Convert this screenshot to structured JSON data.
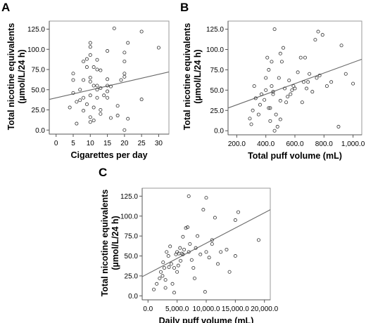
{
  "chart_data": [
    {
      "panel": "A",
      "type": "scatter",
      "title": "",
      "xlabel": "Cigarettes per day",
      "ylabel": "Total nicotine equivalents",
      "ylabel_units": "(µmol/L/24 h)",
      "xlim": [
        -2,
        33
      ],
      "ylim": [
        -5,
        135
      ],
      "xticks": [
        0,
        5,
        10,
        15,
        20,
        25,
        30
      ],
      "xtick_labels": [
        "0",
        "5",
        "10",
        "15",
        "20",
        "25",
        "30"
      ],
      "yticks": [
        0,
        25,
        50,
        75,
        100,
        125
      ],
      "ytick_labels": [
        "0.0",
        "25.0",
        "50.0",
        "75.0",
        "100.0",
        "125.0"
      ],
      "grid": false,
      "points": [
        [
          4,
          28
        ],
        [
          5,
          70
        ],
        [
          5,
          46
        ],
        [
          5,
          62
        ],
        [
          6,
          8
        ],
        [
          6,
          35
        ],
        [
          7,
          50
        ],
        [
          7,
          37
        ],
        [
          8,
          62
        ],
        [
          8,
          85
        ],
        [
          8,
          40
        ],
        [
          8,
          24
        ],
        [
          9,
          88
        ],
        [
          9,
          78
        ],
        [
          9,
          32
        ],
        [
          10,
          108
        ],
        [
          10,
          103
        ],
        [
          10,
          93
        ],
        [
          10,
          65
        ],
        [
          10,
          43
        ],
        [
          10,
          16
        ],
        [
          10,
          10
        ],
        [
          10,
          60
        ],
        [
          11,
          78
        ],
        [
          11,
          55
        ],
        [
          11,
          28
        ],
        [
          11,
          12
        ],
        [
          12,
          87
        ],
        [
          12,
          75
        ],
        [
          12,
          55
        ],
        [
          12,
          50
        ],
        [
          12,
          40
        ],
        [
          13,
          74
        ],
        [
          13,
          52
        ],
        [
          13,
          25
        ],
        [
          13,
          20
        ],
        [
          14,
          43
        ],
        [
          15,
          98
        ],
        [
          15,
          63
        ],
        [
          15,
          55
        ],
        [
          15,
          48
        ],
        [
          15,
          40
        ],
        [
          16,
          54
        ],
        [
          16,
          15
        ],
        [
          17,
          126
        ],
        [
          18,
          30
        ],
        [
          18,
          18
        ],
        [
          19,
          62
        ],
        [
          20,
          96
        ],
        [
          20,
          85
        ],
        [
          20,
          66
        ],
        [
          20,
          70
        ],
        [
          20,
          0
        ],
        [
          21,
          108
        ],
        [
          21,
          14
        ],
        [
          25,
          122
        ],
        [
          25,
          38
        ],
        [
          30,
          102
        ]
      ],
      "fit": {
        "x": [
          -2,
          33
        ],
        "y": [
          38,
          72
        ]
      }
    },
    {
      "panel": "B",
      "type": "scatter",
      "title": "",
      "xlabel": "Total puff volume (mL)",
      "ylabel": "Total nicotine equivalents",
      "ylabel_units": "(µmol/L/24 h)",
      "xlim": [
        140,
        1060
      ],
      "ylim": [
        -5,
        135
      ],
      "xticks": [
        200,
        400,
        600,
        800,
        1000
      ],
      "xtick_labels": [
        "200.0",
        "400.0",
        "600.0",
        "800.0",
        "1,000.0"
      ],
      "yticks": [
        0,
        25,
        50,
        75,
        100,
        125
      ],
      "ytick_labels": [
        "0.0",
        "25.0",
        "50.0",
        "75.0",
        "100.0",
        "125.0"
      ],
      "grid": false,
      "points": [
        [
          290,
          15
        ],
        [
          300,
          8
        ],
        [
          310,
          25
        ],
        [
          320,
          55
        ],
        [
          330,
          40
        ],
        [
          350,
          20
        ],
        [
          360,
          32
        ],
        [
          370,
          45
        ],
        [
          390,
          38
        ],
        [
          400,
          65
        ],
        [
          400,
          50
        ],
        [
          410,
          90
        ],
        [
          420,
          75
        ],
        [
          420,
          28
        ],
        [
          430,
          28
        ],
        [
          430,
          12
        ],
        [
          440,
          85
        ],
        [
          440,
          55
        ],
        [
          450,
          48
        ],
        [
          450,
          45
        ],
        [
          460,
          125
        ],
        [
          460,
          0
        ],
        [
          470,
          20
        ],
        [
          480,
          5
        ],
        [
          490,
          65
        ],
        [
          500,
          95
        ],
        [
          500,
          37
        ],
        [
          500,
          14
        ],
        [
          510,
          85
        ],
        [
          520,
          102
        ],
        [
          530,
          52
        ],
        [
          540,
          35
        ],
        [
          550,
          42
        ],
        [
          560,
          62
        ],
        [
          570,
          45
        ],
        [
          580,
          50
        ],
        [
          590,
          55
        ],
        [
          600,
          52
        ],
        [
          620,
          72
        ],
        [
          640,
          90
        ],
        [
          650,
          35
        ],
        [
          660,
          60
        ],
        [
          670,
          90
        ],
        [
          680,
          52
        ],
        [
          690,
          60
        ],
        [
          700,
          70
        ],
        [
          720,
          48
        ],
        [
          740,
          112
        ],
        [
          750,
          65
        ],
        [
          760,
          122
        ],
        [
          770,
          68
        ],
        [
          790,
          118
        ],
        [
          820,
          55
        ],
        [
          850,
          60
        ],
        [
          900,
          5
        ],
        [
          920,
          105
        ],
        [
          950,
          70
        ],
        [
          1000,
          58
        ]
      ],
      "fit": {
        "x": [
          140,
          1060
        ],
        "y": [
          28,
          88
        ]
      }
    },
    {
      "panel": "C",
      "type": "scatter",
      "title": "",
      "xlabel": "Daily puff volume (mL)",
      "ylabel": "Total nicotine equivalents",
      "ylabel_units": "(µmol/L/24 h)",
      "xlim": [
        -1000,
        21000
      ],
      "ylim": [
        -5,
        135
      ],
      "xticks": [
        0,
        5000,
        10000,
        15000,
        20000
      ],
      "xtick_labels": [
        "0.0",
        "5,000.0",
        "10,000.0",
        "15,000.0",
        "20,000.0"
      ],
      "yticks": [
        0,
        25,
        50,
        75,
        100,
        125
      ],
      "ytick_labels": [
        "0.0",
        "25.0",
        "50.0",
        "75.0",
        "100.0",
        "125.0"
      ],
      "grid": false,
      "points": [
        [
          1000,
          8
        ],
        [
          1500,
          15
        ],
        [
          2000,
          22
        ],
        [
          2200,
          30
        ],
        [
          2500,
          25
        ],
        [
          2600,
          42
        ],
        [
          2800,
          35
        ],
        [
          3000,
          20
        ],
        [
          3000,
          10
        ],
        [
          3200,
          55
        ],
        [
          3500,
          50
        ],
        [
          3600,
          36
        ],
        [
          3800,
          62
        ],
        [
          4000,
          40
        ],
        [
          4200,
          15
        ],
        [
          4500,
          4
        ],
        [
          4500,
          35
        ],
        [
          4800,
          52
        ],
        [
          5000,
          55
        ],
        [
          5000,
          30
        ],
        [
          5200,
          38
        ],
        [
          5300,
          53
        ],
        [
          5500,
          60
        ],
        [
          5600,
          44
        ],
        [
          5800,
          53
        ],
        [
          6000,
          52
        ],
        [
          6000,
          74
        ],
        [
          6200,
          58
        ],
        [
          6500,
          85
        ],
        [
          6800,
          86
        ],
        [
          7000,
          125
        ],
        [
          7000,
          55
        ],
        [
          7200,
          65
        ],
        [
          7500,
          45
        ],
        [
          7800,
          35
        ],
        [
          8000,
          22
        ],
        [
          8200,
          60
        ],
        [
          8500,
          75
        ],
        [
          9000,
          52
        ],
        [
          9500,
          108
        ],
        [
          9800,
          5
        ],
        [
          10000,
          123
        ],
        [
          10000,
          55
        ],
        [
          10500,
          48
        ],
        [
          11000,
          65
        ],
        [
          11000,
          70
        ],
        [
          11500,
          98
        ],
        [
          12000,
          40
        ],
        [
          12500,
          55
        ],
        [
          13500,
          58
        ],
        [
          14000,
          30
        ],
        [
          15000,
          50
        ],
        [
          15000,
          95
        ],
        [
          15500,
          105
        ],
        [
          19000,
          70
        ]
      ],
      "fit": {
        "x": [
          -1000,
          21000
        ],
        "y": [
          24,
          108
        ]
      }
    }
  ]
}
